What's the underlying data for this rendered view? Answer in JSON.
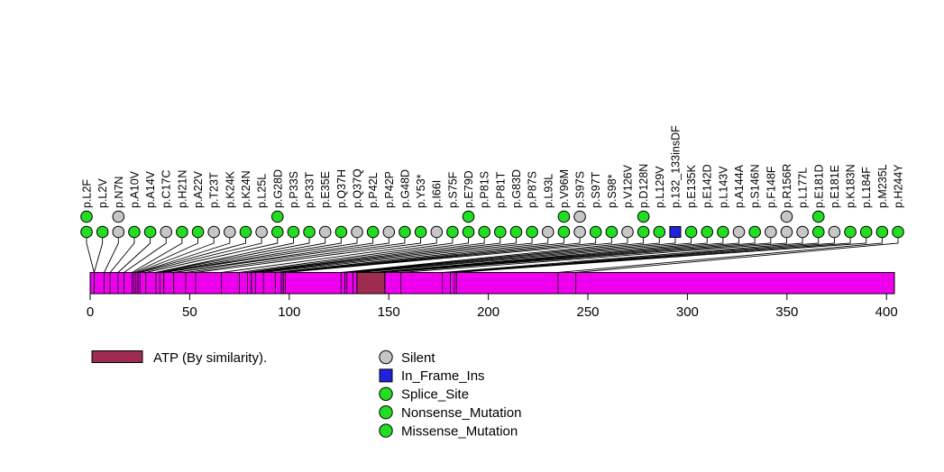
{
  "chart_data": {
    "type": "lollipop",
    "title": "",
    "xlabel": "",
    "ylabel": "",
    "axis": {
      "min": 0,
      "max": 404,
      "ticks": [
        0,
        50,
        100,
        150,
        200,
        250,
        300,
        350,
        400
      ]
    },
    "protein": {
      "length": 404,
      "bar_color": "#EE00EE"
    },
    "domains": [
      {
        "name": "ATP (By similarity).",
        "start": 134,
        "end": 148,
        "color": "#9E2B50"
      }
    ],
    "legend": {
      "type_colors": {
        "Silent": "#C6C6C6",
        "In_Frame_Ins": "#2222DD",
        "Splice_Site": "#22DD22",
        "Nonsense_Mutation": "#22DD22",
        "Missense_Mutation": "#22DD22"
      },
      "type_shapes": {
        "In_Frame_Ins": "square"
      },
      "types": [
        {
          "label": "Silent",
          "color": "#C6C6C6",
          "shape": "circle"
        },
        {
          "label": "In_Frame_Ins",
          "color": "#2222DD",
          "shape": "square"
        },
        {
          "label": "Splice_Site",
          "color": "#22DD22",
          "shape": "circle"
        },
        {
          "label": "Nonsense_Mutation",
          "color": "#22DD22",
          "shape": "circle"
        },
        {
          "label": "Missense_Mutation",
          "color": "#22DD22",
          "shape": "circle"
        }
      ]
    },
    "mutations": [
      {
        "label": "p.L2F",
        "pos": 2,
        "type": "Missense_Mutation",
        "count": 2
      },
      {
        "label": "p.L2V",
        "pos": 2,
        "type": "Missense_Mutation",
        "count": 1
      },
      {
        "label": "p.N7N",
        "pos": 7,
        "type": "Silent",
        "count": 2
      },
      {
        "label": "p.A10V",
        "pos": 10,
        "type": "Missense_Mutation",
        "count": 1
      },
      {
        "label": "p.A14V",
        "pos": 14,
        "type": "Missense_Mutation",
        "count": 1
      },
      {
        "label": "p.C17C",
        "pos": 17,
        "type": "Silent",
        "count": 1
      },
      {
        "label": "p.H21N",
        "pos": 21,
        "type": "Missense_Mutation",
        "count": 1
      },
      {
        "label": "p.A22V",
        "pos": 22,
        "type": "Missense_Mutation",
        "count": 1
      },
      {
        "label": "p.T23T",
        "pos": 23,
        "type": "Silent",
        "count": 1
      },
      {
        "label": "p.K24K",
        "pos": 24,
        "type": "Silent",
        "count": 1
      },
      {
        "label": "p.K24N",
        "pos": 24,
        "type": "Missense_Mutation",
        "count": 1
      },
      {
        "label": "p.L25L",
        "pos": 25,
        "type": "Silent",
        "count": 1
      },
      {
        "label": "p.G28D",
        "pos": 28,
        "type": "Missense_Mutation",
        "count": 2
      },
      {
        "label": "p.P33S",
        "pos": 33,
        "type": "Missense_Mutation",
        "count": 1
      },
      {
        "label": "p.P33T",
        "pos": 33,
        "type": "Missense_Mutation",
        "count": 1
      },
      {
        "label": "p.E35E",
        "pos": 35,
        "type": "Silent",
        "count": 1
      },
      {
        "label": "p.Q37H",
        "pos": 37,
        "type": "Missense_Mutation",
        "count": 1
      },
      {
        "label": "p.Q37Q",
        "pos": 37,
        "type": "Silent",
        "count": 1
      },
      {
        "label": "p.P42L",
        "pos": 42,
        "type": "Missense_Mutation",
        "count": 1
      },
      {
        "label": "p.P42P",
        "pos": 42,
        "type": "Silent",
        "count": 1
      },
      {
        "label": "p.G48D",
        "pos": 48,
        "type": "Missense_Mutation",
        "count": 1
      },
      {
        "label": "p.Y53*",
        "pos": 53,
        "type": "Nonsense_Mutation",
        "count": 1
      },
      {
        "label": "p.I66I",
        "pos": 66,
        "type": "Silent",
        "count": 1
      },
      {
        "label": "p.S75F",
        "pos": 75,
        "type": "Missense_Mutation",
        "count": 1
      },
      {
        "label": "p.E79D",
        "pos": 79,
        "type": "Missense_Mutation",
        "count": 2
      },
      {
        "label": "p.P81S",
        "pos": 81,
        "type": "Missense_Mutation",
        "count": 1
      },
      {
        "label": "p.P81T",
        "pos": 81,
        "type": "Missense_Mutation",
        "count": 1
      },
      {
        "label": "p.G83D",
        "pos": 83,
        "type": "Missense_Mutation",
        "count": 1
      },
      {
        "label": "p.P87S",
        "pos": 87,
        "type": "Missense_Mutation",
        "count": 1
      },
      {
        "label": "p.L93L",
        "pos": 93,
        "type": "Silent",
        "count": 1
      },
      {
        "label": "p.V96M",
        "pos": 96,
        "type": "Missense_Mutation",
        "count": 2
      },
      {
        "label": "p.S97S",
        "pos": 97,
        "type": "Silent",
        "count": 2
      },
      {
        "label": "p.S97T",
        "pos": 97,
        "type": "Missense_Mutation",
        "count": 1
      },
      {
        "label": "p.S98*",
        "pos": 98,
        "type": "Nonsense_Mutation",
        "count": 1
      },
      {
        "label": "p.V126V",
        "pos": 126,
        "type": "Silent",
        "count": 1
      },
      {
        "label": "p.D128N",
        "pos": 128,
        "type": "Missense_Mutation",
        "count": 2
      },
      {
        "label": "p.L129V",
        "pos": 129,
        "type": "Missense_Mutation",
        "count": 1
      },
      {
        "label": "p.132_133insDF",
        "pos": 132,
        "type": "In_Frame_Ins",
        "count": 1
      },
      {
        "label": "p.E135K",
        "pos": 135,
        "type": "Missense_Mutation",
        "count": 1
      },
      {
        "label": "p.E142D",
        "pos": 142,
        "type": "Missense_Mutation",
        "count": 1
      },
      {
        "label": "p.L143V",
        "pos": 143,
        "type": "Missense_Mutation",
        "count": 1
      },
      {
        "label": "p.A144A",
        "pos": 144,
        "type": "Silent",
        "count": 1
      },
      {
        "label": "p.S146N",
        "pos": 146,
        "type": "Missense_Mutation",
        "count": 1
      },
      {
        "label": "p.F148F",
        "pos": 148,
        "type": "Silent",
        "count": 1
      },
      {
        "label": "p.R156R",
        "pos": 156,
        "type": "Silent",
        "count": 2
      },
      {
        "label": "p.L177L",
        "pos": 177,
        "type": "Silent",
        "count": 1
      },
      {
        "label": "p.E181D",
        "pos": 181,
        "type": "Missense_Mutation",
        "count": 2
      },
      {
        "label": "p.E181E",
        "pos": 181,
        "type": "Silent",
        "count": 1
      },
      {
        "label": "p.K183N",
        "pos": 183,
        "type": "Missense_Mutation",
        "count": 1
      },
      {
        "label": "p.L184F",
        "pos": 184,
        "type": "Missense_Mutation",
        "count": 1
      },
      {
        "label": "p.M235L",
        "pos": 235,
        "type": "Missense_Mutation",
        "count": 1
      },
      {
        "label": "p.H244Y",
        "pos": 244,
        "type": "Missense_Mutation",
        "count": 1
      }
    ]
  }
}
